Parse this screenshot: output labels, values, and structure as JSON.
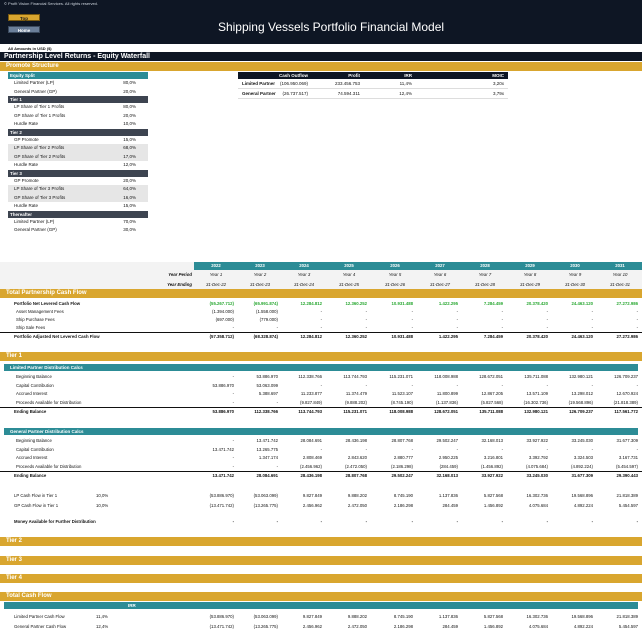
{
  "app": {
    "copyright": "© Profit Vision Financial Services. All rights reserved.",
    "title": "Shipping Vessels Portfolio Financial Model",
    "top_button": "Top",
    "home_button": "Home",
    "amounts_note": "All Amounts in  USD ($)",
    "page_title": "Partnership Level Returns - Equity Waterfall"
  },
  "promote": {
    "band": "Promote Structure",
    "groups": [
      {
        "title": "Equity Split",
        "style": "teal",
        "rows": [
          {
            "label": "Limited Partner (LP)",
            "value": "80,0%",
            "shade": false
          },
          {
            "label": "General Partner (GP)",
            "value": "20,0%",
            "shade": false
          }
        ]
      },
      {
        "title": "Tier 1",
        "style": "dark",
        "rows": [
          {
            "label": "LP Share of Tier 1 Profits",
            "value": "80,0%",
            "shade": false
          },
          {
            "label": "GP Share of Tier 1 Profits",
            "value": "20,0%",
            "shade": false
          },
          {
            "label": "Hurdle Rate",
            "value": "10,0%",
            "shade": false
          }
        ]
      },
      {
        "title": "Tier 2",
        "style": "dark",
        "rows": [
          {
            "label": "GP Promote",
            "value": "15,0%",
            "shade": false
          },
          {
            "label": "LP Share of Tier 2 Profits",
            "value": "68,0%",
            "shade": true
          },
          {
            "label": "GP Share of Tier 2 Profits",
            "value": "17,0%",
            "shade": true
          },
          {
            "label": "Hurdle Rate",
            "value": "12,0%",
            "shade": false
          }
        ]
      },
      {
        "title": "Tier 3",
        "style": "dark",
        "rows": [
          {
            "label": "GP Promote",
            "value": "20,0%",
            "shade": false
          },
          {
            "label": "LP Share of Tier 3 Profits",
            "value": "64,0%",
            "shade": true
          },
          {
            "label": "GP Share of Tier 3 Profits",
            "value": "16,0%",
            "shade": true
          },
          {
            "label": "Hurdle Rate",
            "value": "15,0%",
            "shade": false
          }
        ]
      },
      {
        "title": "Thereafter",
        "style": "dark",
        "rows": [
          {
            "label": "Limited Partner (LP)",
            "value": "70,0%",
            "shade": false
          },
          {
            "label": "General Partner (GP)",
            "value": "30,0%",
            "shade": false
          }
        ]
      }
    ],
    "summary": {
      "headers": [
        "",
        "Cash Outflow",
        "Profit",
        "IRR",
        "MOIC"
      ],
      "rows": [
        [
          "Limited Partner",
          "(106.950.069)",
          "233.456.753",
          "11,4%",
          "3,20x"
        ],
        [
          "General Partner",
          "(26.737.517)",
          "74.594.311",
          "12,4%",
          "3,79x"
        ]
      ]
    }
  },
  "timeline": {
    "years": [
      "2022",
      "2023",
      "2024",
      "2025",
      "2026",
      "2027",
      "2028",
      "2029",
      "2030",
      "2031"
    ],
    "period_label": "Year Period",
    "ending_label": "Year Ending",
    "periods": [
      "Year 1",
      "Year 2",
      "Year 3",
      "Year 4",
      "Year 5",
      "Year 6",
      "Year 7",
      "Year 8",
      "Year 9",
      "Year 10"
    ],
    "endings": [
      "31-Dec-22",
      "31-Dec-23",
      "31-Dec-24",
      "31-Dec-25",
      "31-Dec-26",
      "31-Dec-27",
      "31-Dec-28",
      "31-Dec-29",
      "31-Dec-30",
      "31-Dec-31"
    ]
  },
  "sections": {
    "total_partnership_cash_flow": "Total Partnership Cash Flow",
    "tier1": "Tier 1",
    "lp_calcs": "Limited Partner Distribution Calcs",
    "gp_calcs": "General Partner Distribution Calcs",
    "tier2": "Tier 2",
    "tier3": "Tier 3",
    "tier4": "Tier 4",
    "total_cash_flow": "Total Cash Flow",
    "irr_header": "IRR"
  },
  "tpcf_rows": [
    {
      "label": "Portfolio Net Levered Cash Flow",
      "style": "bold green",
      "pct": "",
      "cells": [
        "(55.267.712)",
        "(65.991.874)",
        "12.284.812",
        "12.360.252",
        "10.931.488",
        "1.422.295",
        "7.284.459",
        "20.378.420",
        "24.463.120",
        "27.272.986"
      ]
    },
    {
      "label": "Asset Management Fees",
      "style": "ind",
      "pct": "",
      "cells": [
        "(1.394.000)",
        "(1.558.000)",
        "-",
        "-",
        "-",
        "-",
        "-",
        "-",
        "-",
        "-"
      ]
    },
    {
      "label": "Ship Purchase Fees",
      "style": "ind",
      "pct": "",
      "cells": [
        "(697.000)",
        "(779.000)",
        "-",
        "-",
        "-",
        "-",
        "-",
        "-",
        "-",
        "-"
      ]
    },
    {
      "label": "Ship Sale Fees",
      "style": "ind",
      "pct": "",
      "cells": [
        "-",
        "-",
        "-",
        "-",
        "-",
        "-",
        "-",
        "-",
        "-",
        "-"
      ]
    },
    {
      "label": "Portfolio Adjusted Net Levered Cash Flow",
      "style": "bold topline",
      "pct": "",
      "cells": [
        "(57.358.712)",
        "(68.328.874)",
        "12.284.812",
        "12.360.252",
        "10.931.488",
        "1.422.295",
        "7.284.459",
        "20.378.420",
        "24.463.120",
        "27.272.986"
      ]
    }
  ],
  "lp_rows": [
    {
      "label": "Beginning Balance",
      "style": "ind",
      "pct": "",
      "cells": [
        "-",
        "53.886.970",
        "112.338.766",
        "113.744.793",
        "115.231.071",
        "118.008.988",
        "128.672.051",
        "135.711.088",
        "132.980.121",
        "126.709.237"
      ]
    },
    {
      "label": "Capital Contribution",
      "style": "ind",
      "pct": "",
      "cells": [
        "53.886.970",
        "53.063.099",
        "-",
        "-",
        "-",
        "-",
        "-",
        "-",
        "-",
        "-"
      ]
    },
    {
      "label": "Accrued Interest",
      "style": "ind",
      "pct": "",
      "cells": [
        "-",
        "5.388.697",
        "11.233.877",
        "11.374.479",
        "11.523.107",
        "11.800.899",
        "12.867.205",
        "13.571.109",
        "13.298.012",
        "12.670.924"
      ]
    },
    {
      "label": "Proceeds Available for Distribution",
      "style": "ind",
      "pct": "",
      "cells": [
        "-",
        "-",
        "(9.827.849)",
        "(9.888.202)",
        "(8.745.190)",
        "(1.137.836)",
        "(5.827.568)",
        "(16.302.736)",
        "(19.568.896)",
        "(21.818.389)"
      ]
    },
    {
      "label": "Ending Balance",
      "style": "bold topline",
      "pct": "",
      "cells": [
        "53.886.970",
        "112.338.766",
        "113.744.793",
        "115.231.071",
        "118.008.988",
        "128.672.051",
        "135.711.088",
        "132.980.121",
        "126.709.237",
        "117.561.772"
      ]
    }
  ],
  "gp_rows": [
    {
      "label": "Beginning Balance",
      "style": "ind",
      "pct": "",
      "cells": [
        "-",
        "13.471.742",
        "28.084.691",
        "28.436.198",
        "28.807.768",
        "29.502.247",
        "32.168.013",
        "33.927.922",
        "33.245.030",
        "31.677.309"
      ]
    },
    {
      "label": "Capital Contribution",
      "style": "ind",
      "pct": "",
      "cells": [
        "13.471.742",
        "13.265.775",
        "-",
        "-",
        "-",
        "-",
        "-",
        "-",
        "-",
        "-"
      ]
    },
    {
      "label": "Accrued Interest",
      "style": "ind",
      "pct": "",
      "cells": [
        "-",
        "1.347.174",
        "2.808.469",
        "2.843.620",
        "2.880.777",
        "2.950.225",
        "3.216.801",
        "3.392.792",
        "3.324.503",
        "3.167.731"
      ]
    },
    {
      "label": "Proceeds Available for Distribution",
      "style": "ind",
      "pct": "",
      "cells": [
        "-",
        "-",
        "(2.456.962)",
        "(2.472.050)",
        "(2.186.298)",
        "(284.459)",
        "(1.456.892)",
        "(4.075.684)",
        "(4.892.224)",
        "(5.454.597)"
      ]
    },
    {
      "label": "Ending Balance",
      "style": "bold topline",
      "pct": "",
      "cells": [
        "13.471.742",
        "28.084.691",
        "28.436.198",
        "28.807.768",
        "29.502.247",
        "32.168.013",
        "33.927.922",
        "33.245.030",
        "31.677.309",
        "29.390.443"
      ]
    }
  ],
  "tier1_cf_rows": [
    {
      "label": "LP Cash Flow in Tier 1",
      "style": "",
      "pct": "10,0%",
      "cells": [
        "(53.886.970)",
        "(53.063.099)",
        "9.827.849",
        "9.888.202",
        "8.745.190",
        "1.137.836",
        "5.827.568",
        "16.302.736",
        "19.568.896",
        "21.818.389"
      ]
    },
    {
      "label": "GP Cash Flow in Tier 1",
      "style": "",
      "pct": "10,0%",
      "cells": [
        "(13.471.742)",
        "(13.265.775)",
        "2.456.962",
        "2.472.050",
        "2.186.298",
        "284.459",
        "1.456.892",
        "4.075.684",
        "4.892.224",
        "5.454.597"
      ]
    }
  ],
  "money_row": {
    "label": "Money Available for Further Distribution",
    "style": "bold",
    "pct": "",
    "cells": [
      "-",
      "-",
      "-",
      "-",
      "-",
      "-",
      "-",
      "-",
      "-",
      "-"
    ]
  },
  "total_rows": [
    {
      "label": "Limited Partner Cash Flow",
      "style": "",
      "pct": "11,4%",
      "cells": [
        "(53.886.970)",
        "(53.063.099)",
        "9.827.849",
        "9.888.202",
        "8.745.190",
        "1.137.836",
        "5.827.568",
        "16.302.736",
        "19.568.896",
        "21.818.389"
      ]
    },
    {
      "label": "General Partner Cash Flow",
      "style": "",
      "pct": "12,4%",
      "cells": [
        "(13.471.742)",
        "(13.265.775)",
        "2.456.962",
        "2.472.050",
        "2.186.298",
        "284.459",
        "1.456.892",
        "4.075.684",
        "4.892.224",
        "5.454.597"
      ]
    }
  ]
}
